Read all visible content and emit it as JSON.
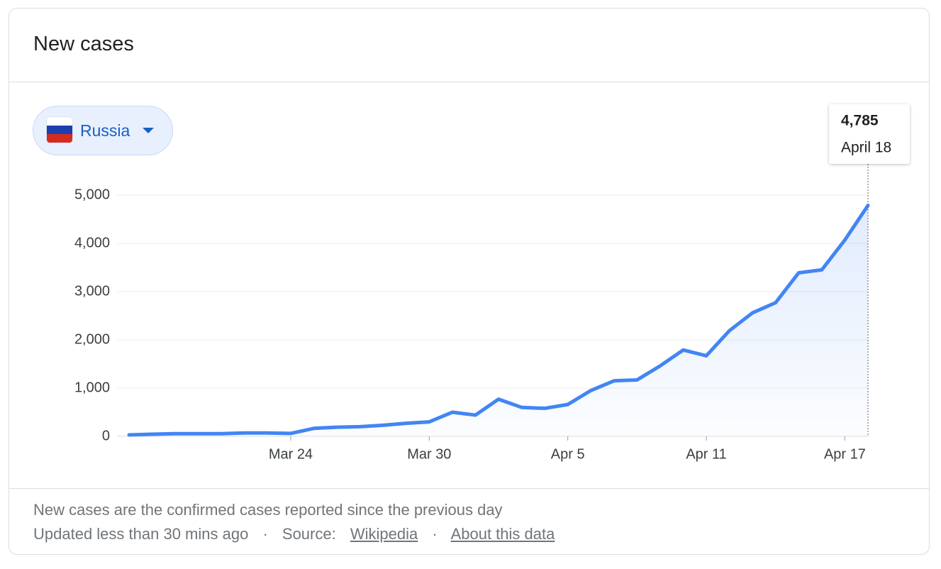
{
  "header": {
    "title": "New cases"
  },
  "selector": {
    "country": "Russia"
  },
  "chart_data": {
    "type": "line",
    "categories": [
      null,
      null,
      null,
      null,
      null,
      null,
      null,
      "Mar 24",
      null,
      null,
      null,
      null,
      null,
      "Mar 30",
      null,
      null,
      null,
      null,
      null,
      "Apr 5",
      null,
      null,
      null,
      null,
      null,
      "Apr 11",
      null,
      null,
      null,
      null,
      null,
      "Apr 17",
      null
    ],
    "values": [
      30,
      45,
      55,
      55,
      55,
      70,
      70,
      60,
      165,
      190,
      200,
      230,
      270,
      300,
      500,
      440,
      770,
      600,
      580,
      660,
      950,
      1150,
      1170,
      1460,
      1790,
      1670,
      2190,
      2560,
      2770,
      3390,
      3450,
      4070,
      4785
    ],
    "color": "#4285f4",
    "ylim": [
      0,
      5000
    ],
    "yticks": [
      0,
      {
        "value": 1000,
        "label": "1,000"
      },
      {
        "value": 2000,
        "label": "2,000"
      },
      {
        "value": 3000,
        "label": "3,000"
      },
      {
        "value": 4000,
        "label": "4,000"
      },
      {
        "value": 5000,
        "label": "5,000"
      }
    ],
    "grid": true,
    "tooltip": {
      "value_label": "4,785",
      "date": "April 18"
    }
  },
  "footer": {
    "note": "New cases are the confirmed cases reported since the previous day",
    "updated": "Updated less than 30 mins ago",
    "separator": "·",
    "source_label": "Source:",
    "source_link": "Wikipedia",
    "about_link": "About this data"
  }
}
